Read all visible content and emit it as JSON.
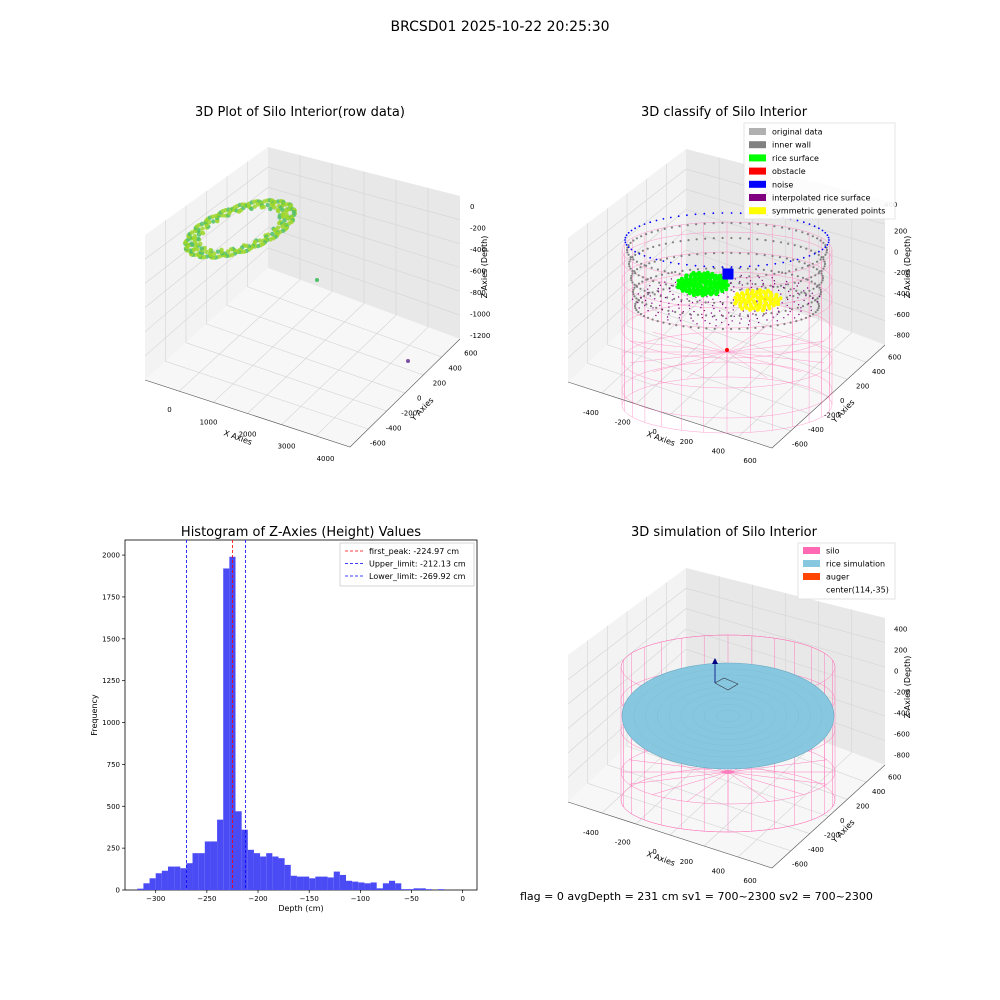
{
  "figure": {
    "title": "BRCSD01 2025-10-22 20:25:30",
    "status_line": "flag = 0     avgDepth = 231 cm  sv1 = 700~2300  sv2 = 700~2300"
  },
  "colors": {
    "raw_points": "#9ed62a",
    "raw_points_dark": "#4fbf6a",
    "inner_wall": "#808080",
    "original": "#b0b0b0",
    "rice_surface": "#00ff00",
    "obstacle": "#ff0000",
    "noise": "#0000ff",
    "interpolated": "#800080",
    "symmetric": "#ffff00",
    "silo": "#ff69b4",
    "rice_sim": "#87c8e0",
    "auger": "#ff4500",
    "hist_bar": "#4b4bf5"
  },
  "plots": {
    "raw": {
      "title": "3D Plot of Silo Interior(row data)",
      "x_label": "X Axies",
      "y_label": "Y Axies",
      "z_label": "Z Axies (Depth)",
      "x_ticks": [
        "0",
        "1000",
        "2000",
        "3000",
        "4000"
      ],
      "y_ticks": [
        "-600",
        "-400",
        "-200",
        "0",
        "200",
        "400",
        "600"
      ],
      "z_ticks": [
        "0",
        "-200",
        "-400",
        "-600",
        "-800",
        "-1000",
        "-1200"
      ]
    },
    "classify": {
      "title": "3D classify of Silo Interior",
      "x_label": "X Axies",
      "y_label": "Y Axies",
      "z_label": "Z Axies (Depth)",
      "x_ticks": [
        "-400",
        "-200",
        "0",
        "200",
        "400",
        "600"
      ],
      "y_ticks": [
        "-600",
        "-400",
        "-200",
        "0",
        "200",
        "400",
        "600"
      ],
      "z_ticks": [
        "200",
        "0",
        "-200",
        "-400",
        "-600",
        "-800"
      ],
      "z_top_partial": "400",
      "legend": [
        {
          "label": "original data",
          "color": "#b0b0b0"
        },
        {
          "label": "inner wall",
          "color": "#808080"
        },
        {
          "label": "rice surface",
          "color": "#00ff00"
        },
        {
          "label": "obstacle",
          "color": "#ff0000"
        },
        {
          "label": "noise",
          "color": "#0000ff"
        },
        {
          "label": "interpolated rice surface",
          "color": "#800080"
        },
        {
          "label": "symmetric generated points",
          "color": "#ffff00"
        }
      ]
    },
    "simulation": {
      "title": "3D simulation of Silo Interior",
      "x_label": "X Axies",
      "y_label": "Y Axies",
      "z_label": "Z Axies (Depth)",
      "x_ticks": [
        "-400",
        "-200",
        "0",
        "200",
        "400",
        "600"
      ],
      "y_ticks": [
        "-600",
        "-400",
        "-200",
        "0",
        "200",
        "400",
        "600"
      ],
      "z_ticks": [
        "400",
        "200",
        "0",
        "-200",
        "-400",
        "-600",
        "-800"
      ],
      "legend": [
        {
          "label": "silo",
          "color": "#ff69b4"
        },
        {
          "label": "rice simulation",
          "color": "#87c8e0"
        },
        {
          "label": "auger",
          "color": "#ff4500"
        },
        {
          "label": "center(114,-35)",
          "color": ""
        }
      ]
    }
  },
  "chart_data": {
    "type": "bar",
    "title": "Histogram of Z-Axies (Height) Values",
    "xlabel": "Depth (cm)",
    "ylabel": "Frequency",
    "xlim": [
      -330,
      14
    ],
    "ylim": [
      0,
      2090
    ],
    "x_ticks": [
      -300,
      -250,
      -200,
      -150,
      -100,
      -50,
      0
    ],
    "y_ticks": [
      0,
      250,
      500,
      750,
      1000,
      1250,
      1500,
      1750,
      2000
    ],
    "bin_width": 6,
    "bin_start": -318,
    "values": [
      8,
      40,
      70,
      100,
      115,
      140,
      140,
      130,
      160,
      220,
      220,
      290,
      290,
      420,
      1920,
      1990,
      470,
      360,
      240,
      220,
      200,
      220,
      200,
      190,
      150,
      85,
      80,
      80,
      70,
      80,
      80,
      75,
      110,
      90,
      55,
      50,
      45,
      40,
      45,
      10,
      40,
      55,
      40,
      5,
      5,
      10,
      10,
      5,
      0,
      5
    ],
    "lines": [
      {
        "label": "first_peak: -224.97 cm",
        "x": -224.97,
        "color": "#ff0000"
      },
      {
        "label": "Upper_limit: -212.13 cm",
        "x": -212.13,
        "color": "#0000ff"
      },
      {
        "label": "Lower_limit: -269.92 cm",
        "x": -269.92,
        "color": "#0000ff"
      }
    ],
    "legend_position": "top-right",
    "grid": false
  }
}
